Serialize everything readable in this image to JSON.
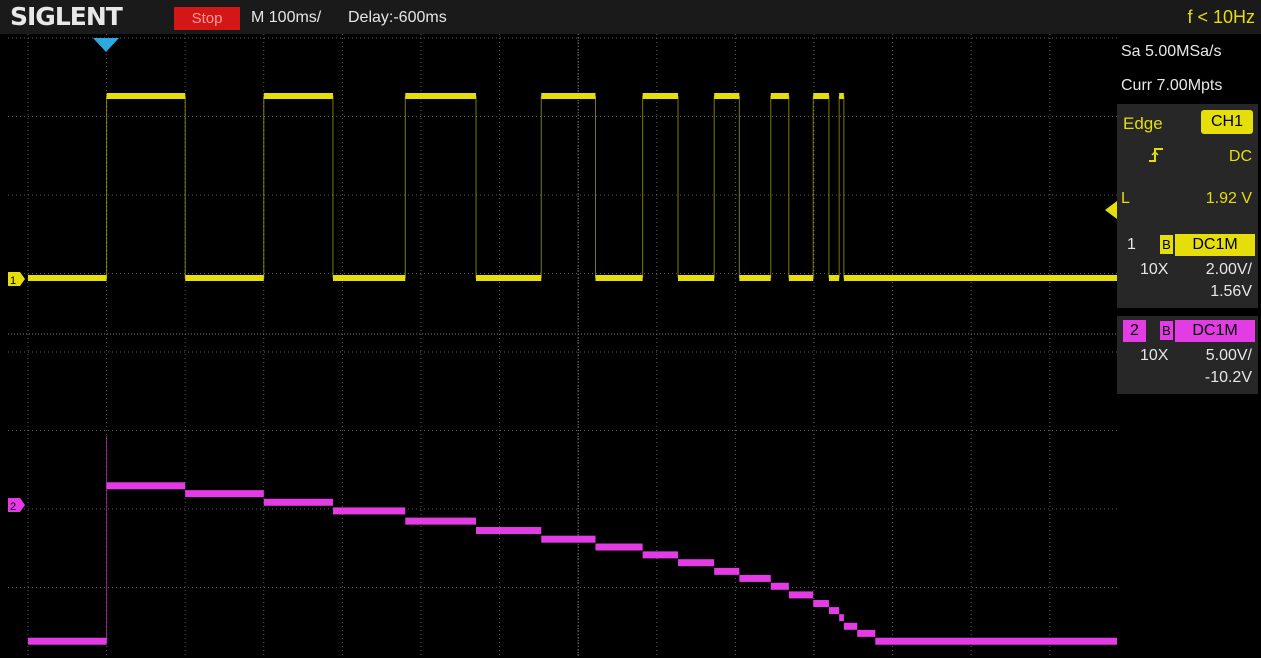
{
  "header": {
    "brand": "SIGLENT",
    "run_state": "Stop",
    "timebase": "M 100ms/",
    "delay": "Delay:-600ms",
    "trigger_freq": "f < 10Hz"
  },
  "acquisition": {
    "sample_rate": "Sa 5.00MSa/s",
    "memory_depth": "Curr 7.00Mpts"
  },
  "trigger": {
    "type": "Edge",
    "source": "CH1",
    "slope_icon": "rising-edge-icon",
    "coupling": "DC",
    "level_label": "L",
    "level_value": "1.92 V"
  },
  "channels": [
    {
      "number": "1",
      "bw_limit": "B",
      "coupling": "DC1M",
      "probe": "10X",
      "scale": "2.00V/",
      "offset": "1.56V",
      "color": "#e6de0a"
    },
    {
      "number": "2",
      "bw_limit": "B",
      "coupling": "DC1M",
      "probe": "10X",
      "scale": "5.00V/",
      "offset": "-10.2V",
      "color": "#e43ce4"
    }
  ],
  "colors": {
    "ch1": "#e6de0a",
    "ch2": "#e43ce4",
    "trigger_marker": "#2fa8e0",
    "stop": "#d31717",
    "grid": "#5a5a5a"
  },
  "waveforms": {
    "ch1_pulse_edges_div": [
      1.0,
      2.0,
      3.0,
      3.88,
      4.8,
      5.7,
      6.53,
      7.22,
      7.82,
      8.27,
      8.73,
      9.05,
      9.45,
      9.68,
      9.99,
      10.19,
      10.32,
      10.38
    ],
    "ch2_steps_div": [
      [
        0.0,
        1.0,
        3.92
      ],
      [
        1.0,
        2.0,
        1.94
      ],
      [
        2.0,
        3.0,
        2.04
      ],
      [
        3.0,
        3.88,
        2.15
      ],
      [
        3.88,
        4.8,
        2.26
      ],
      [
        4.8,
        5.7,
        2.39
      ],
      [
        5.7,
        6.53,
        2.51
      ],
      [
        6.53,
        7.22,
        2.62
      ],
      [
        7.22,
        7.82,
        2.72
      ],
      [
        7.82,
        8.27,
        2.82
      ],
      [
        8.27,
        8.73,
        2.92
      ],
      [
        8.73,
        9.05,
        3.03
      ],
      [
        9.05,
        9.45,
        3.12
      ],
      [
        9.45,
        9.68,
        3.22
      ],
      [
        9.68,
        9.99,
        3.33
      ],
      [
        9.99,
        10.19,
        3.44
      ],
      [
        10.19,
        10.32,
        3.53
      ],
      [
        10.32,
        10.38,
        3.62
      ],
      [
        10.38,
        10.55,
        3.73
      ],
      [
        10.55,
        10.78,
        3.82
      ],
      [
        10.78,
        14.0,
        3.92
      ]
    ]
  }
}
